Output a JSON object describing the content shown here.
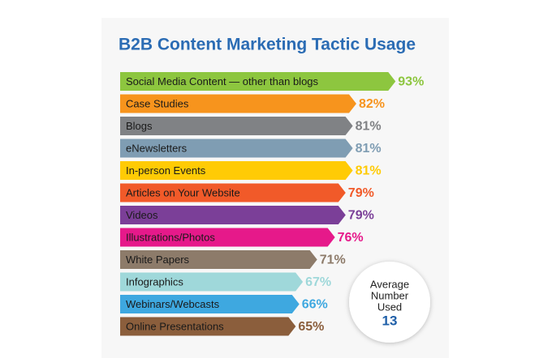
{
  "chart_data": {
    "type": "arrow-bar",
    "title": "B2B Content Marketing Tactic Usage",
    "categories": [
      "Social Media Content — other than blogs",
      "Case Studies",
      "Blogs",
      "eNewsletters",
      "In-person Events",
      "Articles on Your Website",
      "Videos",
      "Illustrations/Photos",
      "White Papers",
      "Infographics",
      "Webinars/Webcasts",
      "Online Presentations"
    ],
    "values": [
      93,
      82,
      81,
      81,
      81,
      79,
      79,
      76,
      71,
      67,
      66,
      65
    ],
    "value_labels": [
      "93%",
      "82%",
      "81%",
      "81%",
      "81%",
      "79%",
      "79%",
      "76%",
      "71%",
      "67%",
      "66%",
      "65%"
    ],
    "colors": [
      "#8dc63f",
      "#f7941d",
      "#808285",
      "#7f9db3",
      "#ffcb05",
      "#f15a29",
      "#7b3f98",
      "#e6198a",
      "#8d7b6a",
      "#9fd8da",
      "#3ea8e0",
      "#8b5e3c"
    ],
    "annotation": {
      "lines": [
        "Average",
        "Number",
        "Used"
      ],
      "value": 13
    }
  }
}
